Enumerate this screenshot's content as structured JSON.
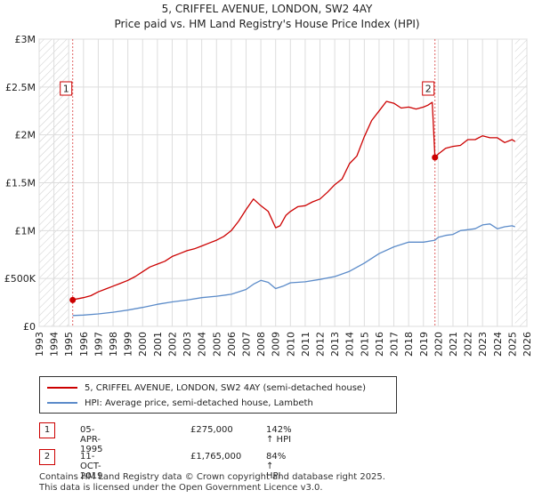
{
  "chart_data": {
    "type": "line",
    "title": "5, CRIFFEL AVENUE, LONDON, SW2 4AY",
    "subtitle": "Price paid vs. HM Land Registry's House Price Index (HPI)",
    "xlim": [
      1993,
      2026
    ],
    "ylim": [
      0,
      3000000
    ],
    "x_ticks": [
      "1993",
      "1994",
      "1995",
      "1996",
      "1997",
      "1998",
      "1999",
      "2000",
      "2001",
      "2002",
      "2003",
      "2004",
      "2005",
      "2006",
      "2007",
      "2008",
      "2009",
      "2010",
      "2011",
      "2012",
      "2013",
      "2014",
      "2015",
      "2016",
      "2017",
      "2018",
      "2019",
      "2020",
      "2021",
      "2022",
      "2023",
      "2024",
      "2025",
      "2026"
    ],
    "y_ticks": [
      {
        "value": 0,
        "label": "£0"
      },
      {
        "value": 500000,
        "label": "£500K"
      },
      {
        "value": 1000000,
        "label": "£1M"
      },
      {
        "value": 1500000,
        "label": "£1.5M"
      },
      {
        "value": 2000000,
        "label": "£2M"
      },
      {
        "value": 2500000,
        "label": "£2.5M"
      },
      {
        "value": 3000000,
        "label": "£3M"
      }
    ],
    "hatched_regions": [
      [
        1993,
        1995.0
      ],
      [
        2025.2,
        2026
      ]
    ],
    "series": [
      {
        "name": "5, CRIFFEL AVENUE, LONDON, SW2 4AY (semi-detached house)",
        "color": "#cc0000",
        "x": [
          1995.27,
          1995.5,
          1996,
          1996.5,
          1997,
          1997.5,
          1998,
          1998.5,
          1999,
          1999.5,
          2000,
          2000.5,
          2001,
          2001.5,
          2002,
          2002.5,
          2003,
          2003.5,
          2004,
          2004.5,
          2005,
          2005.5,
          2006,
          2006.5,
          2007,
          2007.5,
          2008,
          2008.5,
          2009,
          2009.3,
          2009.7,
          2010,
          2010.5,
          2011,
          2011.5,
          2012,
          2012.5,
          2013,
          2013.5,
          2014,
          2014.5,
          2015,
          2015.5,
          2016,
          2016.5,
          2017,
          2017.5,
          2018,
          2018.5,
          2019,
          2019.3,
          2019.6,
          2019.78,
          2020,
          2020.5,
          2021,
          2021.5,
          2022,
          2022.5,
          2023,
          2023.5,
          2024,
          2024.5,
          2025,
          2025.2
        ],
        "values": [
          275000,
          285000,
          300000,
          320000,
          360000,
          390000,
          420000,
          450000,
          480000,
          520000,
          570000,
          620000,
          650000,
          680000,
          730000,
          760000,
          790000,
          810000,
          840000,
          870000,
          900000,
          940000,
          1000000,
          1100000,
          1220000,
          1330000,
          1260000,
          1200000,
          1030000,
          1050000,
          1160000,
          1200000,
          1250000,
          1260000,
          1300000,
          1330000,
          1400000,
          1480000,
          1540000,
          1700000,
          1780000,
          1980000,
          2150000,
          2250000,
          2350000,
          2330000,
          2280000,
          2290000,
          2270000,
          2290000,
          2310000,
          2340000,
          1765000,
          1800000,
          1860000,
          1880000,
          1890000,
          1950000,
          1950000,
          1990000,
          1970000,
          1970000,
          1920000,
          1950000,
          1930000
        ]
      },
      {
        "name": "HPI: Average price, semi-detached house, Lambeth",
        "color": "#5b8bc9",
        "x": [
          1995.27,
          1996,
          1997,
          1998,
          1999,
          2000,
          2001,
          2002,
          2003,
          2004,
          2005,
          2006,
          2007,
          2007.5,
          2008,
          2008.5,
          2009,
          2009.5,
          2010,
          2011,
          2012,
          2013,
          2014,
          2015,
          2016,
          2017,
          2018,
          2019,
          2019.78,
          2020,
          2020.5,
          2021,
          2021.5,
          2022,
          2022.5,
          2023,
          2023.5,
          2024,
          2024.5,
          2025,
          2025.2
        ],
        "values": [
          113000,
          118000,
          130000,
          148000,
          170000,
          198000,
          230000,
          255000,
          275000,
          300000,
          315000,
          335000,
          385000,
          440000,
          480000,
          460000,
          395000,
          420000,
          455000,
          465000,
          490000,
          520000,
          575000,
          660000,
          760000,
          830000,
          880000,
          880000,
          900000,
          930000,
          950000,
          960000,
          1000000,
          1010000,
          1020000,
          1060000,
          1070000,
          1020000,
          1040000,
          1050000,
          1040000
        ]
      }
    ],
    "transactions": [
      {
        "label": "1",
        "x": 1995.27,
        "value": 275000,
        "date": "05-APR-1995",
        "price": "£275,000",
        "hpi": "142% ↑ HPI"
      },
      {
        "label": "2",
        "x": 2019.78,
        "value": 1765000,
        "date": "11-OCT-2019",
        "price": "£1,765,000",
        "hpi": "84% ↑ HPI"
      }
    ]
  },
  "footer": {
    "line1": "Contains HM Land Registry data © Crown copyright and database right 2025.",
    "line2": "This data is licensed under the Open Government Licence v3.0."
  }
}
